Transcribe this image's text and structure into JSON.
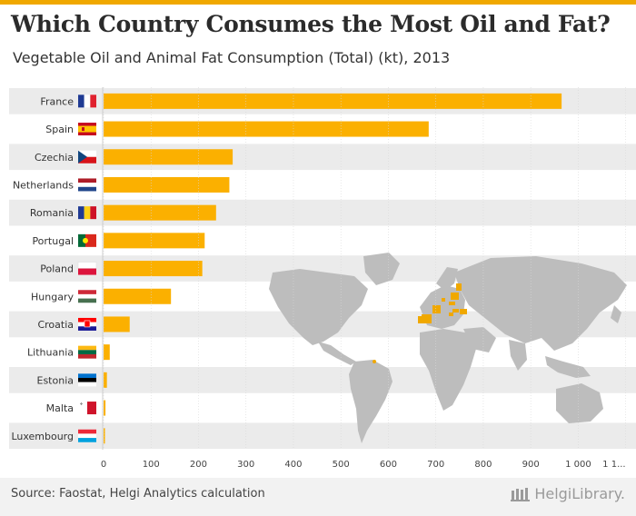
{
  "header": {
    "title": "Which Country Consumes the Most Oil and Fat?",
    "subtitle": "Vegetable Oil and Animal Fat Consumption (Total) (kt), 2013"
  },
  "footer": {
    "source": "Source: Faostat, Helgi Analytics calculation",
    "logo_text": "HelgiLibrary."
  },
  "colors": {
    "bar": "#fbb000",
    "stripe": "#ebebeb",
    "highlight": "#f0a800",
    "map_land": "#bdbdbd"
  },
  "chart_data": {
    "type": "bar",
    "orientation": "horizontal",
    "title": "Which Country Consumes the Most Oil and Fat?",
    "subtitle": "Vegetable Oil and Animal Fat Consumption (Total) (kt), 2013",
    "xlabel": "",
    "ylabel": "",
    "xlim": [
      0,
      1100
    ],
    "grid": true,
    "categories": [
      "France",
      "Spain",
      "Czechia",
      "Netherlands",
      "Romania",
      "Portugal",
      "Poland",
      "Hungary",
      "Croatia",
      "Lithuania",
      "Estonia",
      "Malta",
      "Luxembourg"
    ],
    "flags": [
      "fr",
      "es",
      "cz",
      "nl",
      "ro",
      "pt",
      "pl",
      "hu",
      "hr",
      "lt",
      "ee",
      "mt",
      "lu"
    ],
    "values": [
      965,
      685,
      272,
      265,
      237,
      213,
      208,
      142,
      55,
      13,
      7,
      4,
      1
    ],
    "x_ticks": [
      0,
      100,
      200,
      300,
      400,
      500,
      600,
      700,
      800,
      900,
      1000,
      1100
    ],
    "x_tick_labels": [
      "0",
      "100",
      "200",
      "300",
      "400",
      "500",
      "600",
      "700",
      "800",
      "900",
      "1 000",
      "1 1..."
    ]
  }
}
